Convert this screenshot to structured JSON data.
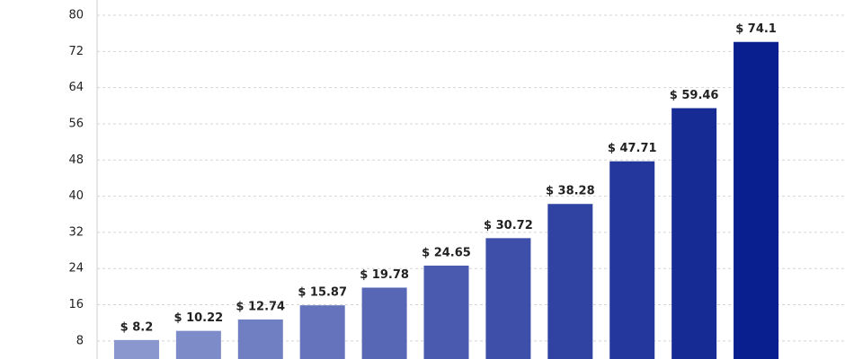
{
  "chart_data": {
    "type": "bar",
    "categories": [
      null,
      null,
      null,
      null,
      null,
      null,
      null,
      null,
      null,
      null,
      null
    ],
    "values": [
      8.2,
      10.22,
      12.74,
      15.87,
      19.78,
      24.65,
      30.72,
      38.28,
      47.71,
      59.46,
      74.1
    ],
    "value_labels": [
      "$ 8.2",
      "$ 10.22",
      "$ 12.74",
      "$ 15.87",
      "$ 19.78",
      "$ 24.65",
      "$ 30.72",
      "$ 38.28",
      "$ 47.71",
      "$ 59.46",
      "$ 74.1"
    ],
    "colors": [
      "#8a97cf",
      "#7d8bc9",
      "#707fc2",
      "#6473bc",
      "#5767b5",
      "#4a5baf",
      "#3d4fa9",
      "#3043a2",
      "#24379c",
      "#172b95",
      "#0a1f8f"
    ],
    "ylim": [
      4,
      80
    ],
    "yticks": [
      8,
      16,
      24,
      32,
      40,
      48,
      56,
      64,
      72,
      80
    ],
    "grid": true
  }
}
